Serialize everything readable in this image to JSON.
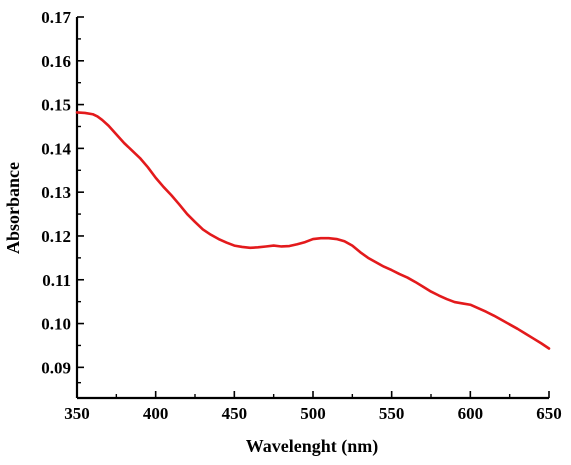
{
  "chart_data": {
    "type": "line",
    "title": "",
    "xlabel": "Wavelenght (nm)",
    "ylabel": "Absorbance",
    "xlim": [
      350,
      650
    ],
    "ylim": [
      0.083,
      0.17
    ],
    "x_ticks": [
      350,
      400,
      450,
      500,
      550,
      600,
      650
    ],
    "x_tick_labels": [
      "350",
      "400",
      "450",
      "500",
      "550",
      "600",
      "650"
    ],
    "y_ticks": [
      0.09,
      0.1,
      0.11,
      0.12,
      0.13,
      0.14,
      0.15,
      0.16,
      0.17
    ],
    "y_tick_labels": [
      "0.09",
      "0.10",
      "0.11",
      "0.12",
      "0.13",
      "0.14",
      "0.15",
      "0.16",
      "0.17"
    ],
    "grid": false,
    "legend": false,
    "series": [
      {
        "color": "#e31a1c",
        "x": [
          350,
          355,
          360,
          363,
          366,
          370,
          375,
          380,
          385,
          390,
          395,
          400,
          405,
          410,
          415,
          420,
          425,
          430,
          435,
          440,
          445,
          450,
          455,
          460,
          465,
          470,
          475,
          480,
          485,
          490,
          495,
          500,
          505,
          510,
          515,
          520,
          525,
          530,
          535,
          540,
          545,
          550,
          555,
          560,
          565,
          570,
          575,
          580,
          585,
          590,
          595,
          600,
          605,
          610,
          615,
          620,
          625,
          630,
          635,
          640,
          645,
          650
        ],
        "y": [
          0.1482,
          0.1481,
          0.1478,
          0.1473,
          0.1465,
          0.1452,
          0.1432,
          0.1412,
          0.1395,
          0.1378,
          0.1357,
          0.1333,
          0.1312,
          0.1293,
          0.1272,
          0.125,
          0.1232,
          0.1215,
          0.1203,
          0.1193,
          0.1185,
          0.1178,
          0.1175,
          0.1173,
          0.1174,
          0.1176,
          0.1178,
          0.1176,
          0.1177,
          0.1181,
          0.1186,
          0.1193,
          0.1195,
          0.1195,
          0.1193,
          0.1188,
          0.1178,
          0.1163,
          0.115,
          0.114,
          0.113,
          0.1122,
          0.1113,
          0.1105,
          0.1095,
          0.1084,
          0.1073,
          0.1064,
          0.1056,
          0.1049,
          0.1046,
          0.1043,
          0.1035,
          0.1027,
          0.1018,
          0.1008,
          0.0998,
          0.0988,
          0.0977,
          0.0966,
          0.0955,
          0.0943
        ]
      }
    ]
  }
}
